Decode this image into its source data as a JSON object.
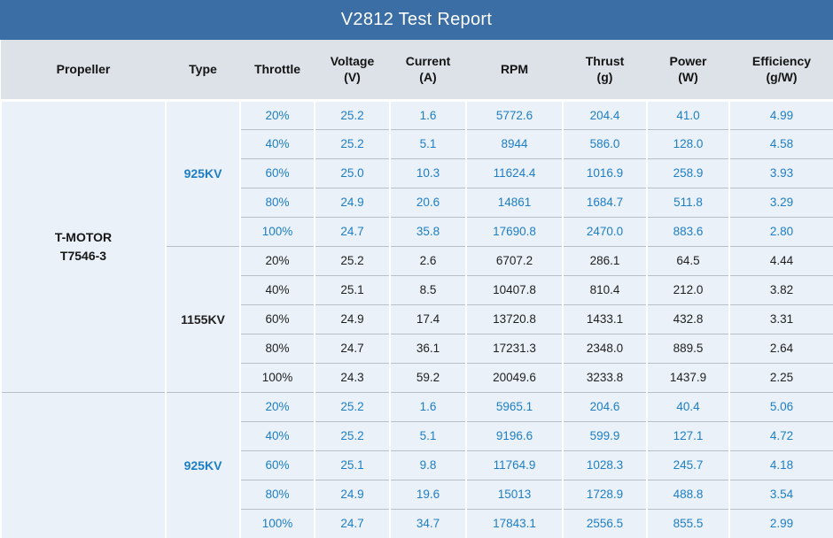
{
  "title": "V2812 Test Report",
  "colors": {
    "title_bar": "#3A6EA5",
    "header_bg": "#DCE2E8",
    "row_bg": "#EAF1F8",
    "horizontal_line": "#B7C0C9",
    "vertical_line": "#FFFFFF",
    "blue_text": "#1E7EC4",
    "black_text": "#1F1F1F"
  },
  "table": {
    "columns": [
      {
        "key": "propeller",
        "label": "Propeller",
        "unit": "",
        "width": 186
      },
      {
        "key": "type",
        "label": "Type",
        "unit": "",
        "width": 84
      },
      {
        "key": "throttle",
        "label": "Throttle",
        "unit": "",
        "width": 84
      },
      {
        "key": "voltage",
        "label": "Voltage",
        "unit": "(V)",
        "width": 85
      },
      {
        "key": "current",
        "label": "Current",
        "unit": "(A)",
        "width": 86
      },
      {
        "key": "rpm",
        "label": "RPM",
        "unit": "",
        "width": 109
      },
      {
        "key": "thrust",
        "label": "Thrust",
        "unit": "(g)",
        "width": 95
      },
      {
        "key": "power",
        "label": "Power",
        "unit": "(W)",
        "width": 93
      },
      {
        "key": "efficiency",
        "label": "Efficiency",
        "unit": "(g/W)",
        "width": 118
      }
    ],
    "propellers": [
      {
        "lines": [
          "T-MOTOR",
          "T7546-3"
        ],
        "groups": [
          0,
          1
        ]
      },
      {
        "lines": [],
        "groups": [
          2
        ]
      }
    ],
    "groups": [
      {
        "type": "925KV",
        "color": "blue",
        "rows": [
          [
            "20%",
            "25.2",
            "1.6",
            "5772.6",
            "204.4",
            "41.0",
            "4.99"
          ],
          [
            "40%",
            "25.2",
            "5.1",
            "8944",
            "586.0",
            "128.0",
            "4.58"
          ],
          [
            "60%",
            "25.0",
            "10.3",
            "11624.4",
            "1016.9",
            "258.9",
            "3.93"
          ],
          [
            "80%",
            "24.9",
            "20.6",
            "14861",
            "1684.7",
            "511.8",
            "3.29"
          ],
          [
            "100%",
            "24.7",
            "35.8",
            "17690.8",
            "2470.0",
            "883.6",
            "2.80"
          ]
        ]
      },
      {
        "type": "1155KV",
        "color": "black",
        "rows": [
          [
            "20%",
            "25.2",
            "2.6",
            "6707.2",
            "286.1",
            "64.5",
            "4.44"
          ],
          [
            "40%",
            "25.1",
            "8.5",
            "10407.8",
            "810.4",
            "212.0",
            "3.82"
          ],
          [
            "60%",
            "24.9",
            "17.4",
            "13720.8",
            "1433.1",
            "432.8",
            "3.31"
          ],
          [
            "80%",
            "24.7",
            "36.1",
            "17231.3",
            "2348.0",
            "889.5",
            "2.64"
          ],
          [
            "100%",
            "24.3",
            "59.2",
            "20049.6",
            "3233.8",
            "1437.9",
            "2.25"
          ]
        ]
      },
      {
        "type": "925KV",
        "color": "blue",
        "rows": [
          [
            "20%",
            "25.2",
            "1.6",
            "5965.1",
            "204.6",
            "40.4",
            "5.06"
          ],
          [
            "40%",
            "25.2",
            "5.1",
            "9196.6",
            "599.9",
            "127.1",
            "4.72"
          ],
          [
            "60%",
            "25.1",
            "9.8",
            "11764.9",
            "1028.3",
            "245.7",
            "4.18"
          ],
          [
            "80%",
            "24.9",
            "19.6",
            "15013",
            "1728.9",
            "488.8",
            "3.54"
          ],
          [
            "100%",
            "24.7",
            "34.7",
            "17843.1",
            "2556.5",
            "855.5",
            "2.99"
          ]
        ]
      }
    ]
  }
}
